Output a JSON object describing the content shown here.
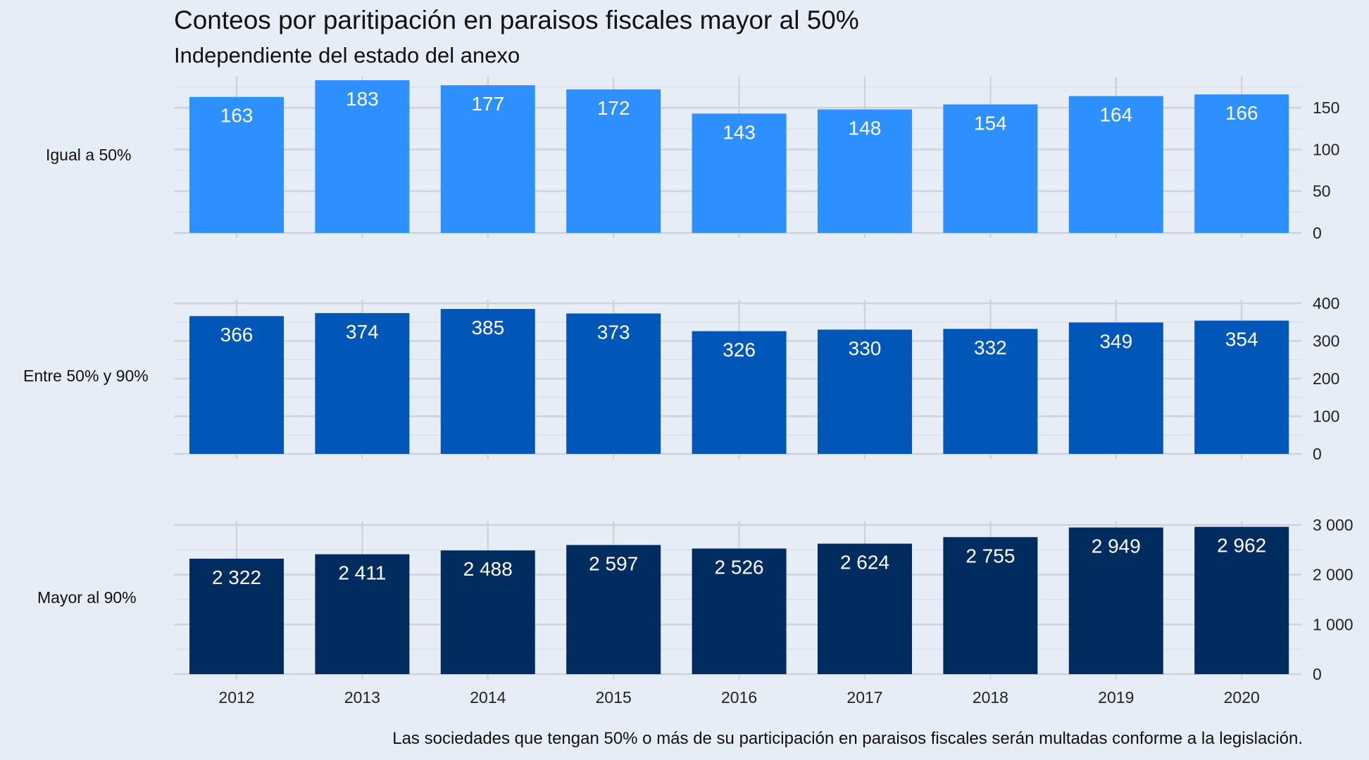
{
  "chart_data": {
    "type": "bar",
    "title": "Conteos por paritipación en paraisos fiscales mayor al 50%",
    "subtitle": "Independiente del estado del anexo",
    "caption": "Las sociedades que tengan 50% o más de su participación en paraisos fiscales serán multadas conforme a la legislación.",
    "categories": [
      "2012",
      "2013",
      "2014",
      "2015",
      "2016",
      "2017",
      "2018",
      "2019",
      "2020"
    ],
    "grid": true,
    "facets": [
      {
        "label": "Igual a 50%",
        "color": "#2e8fff",
        "ylim": [
          0,
          183
        ],
        "yticks": [
          0,
          50,
          100,
          150
        ],
        "ytick_labels": [
          "0",
          "50",
          "100",
          "150"
        ],
        "values": [
          163,
          183,
          177,
          172,
          143,
          148,
          154,
          164,
          166
        ],
        "value_labels": [
          "163",
          "183",
          "177",
          "172",
          "143",
          "148",
          "154",
          "164",
          "166"
        ]
      },
      {
        "label": "Entre 50% y 90%",
        "color": "#0057b7",
        "ylim": [
          0,
          400
        ],
        "yticks": [
          0,
          100,
          200,
          300,
          400
        ],
        "ytick_labels": [
          "0",
          "100",
          "200",
          "300",
          "400"
        ],
        "values": [
          366,
          374,
          385,
          373,
          326,
          330,
          332,
          349,
          354
        ],
        "value_labels": [
          "366",
          "374",
          "385",
          "373",
          "326",
          "330",
          "332",
          "349",
          "354"
        ]
      },
      {
        "label": "Mayor al 90%",
        "color": "#002c5f",
        "ylim": [
          0,
          3000
        ],
        "yticks": [
          0,
          1000,
          2000,
          3000
        ],
        "ytick_labels": [
          "0",
          "1 000",
          "2 000",
          "3 000"
        ],
        "values": [
          2322,
          2411,
          2488,
          2597,
          2526,
          2624,
          2755,
          2949,
          2962
        ],
        "value_labels": [
          "2 322",
          "2 411",
          "2 488",
          "2 597",
          "2 526",
          "2 624",
          "2 755",
          "2 949",
          "2 962"
        ]
      }
    ]
  }
}
